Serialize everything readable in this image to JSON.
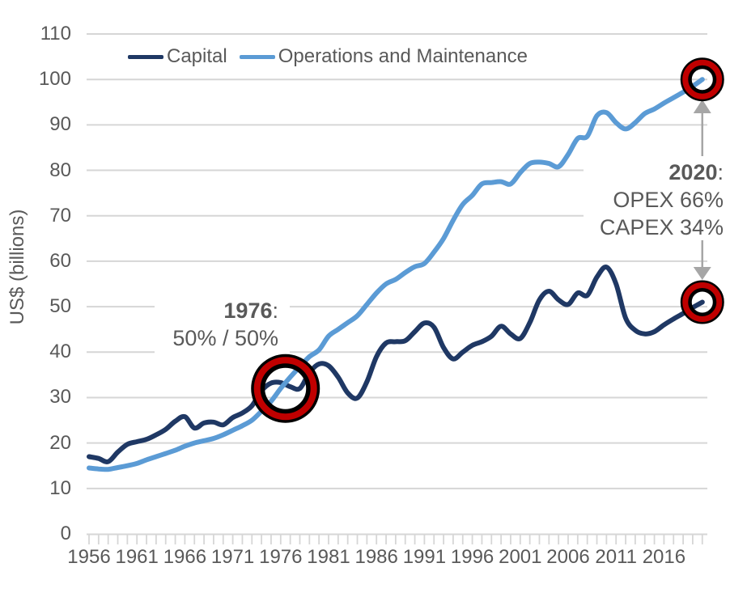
{
  "colors": {
    "background": "#FFFFFF",
    "grid": "#D6D6D6",
    "axis": "#D6D6D6",
    "axis_text": "#595959",
    "capital_line": "#1F3864",
    "om_line": "#5B9BD5",
    "circle_red": "#C00000",
    "circle_outline": "#000000",
    "arrow": "#A6A6A6",
    "annotation_bg": "#FFFFFF",
    "annotation_text": "#595959"
  },
  "annotations": {
    "y1976": {
      "year": "1976",
      "colon": ":",
      "line2": "50% / 50%"
    },
    "y2020": {
      "year": "2020",
      "colon": ":",
      "line2": "OPEX 66%",
      "line3": "CAPEX 34%"
    }
  },
  "chart_data": {
    "type": "line",
    "title": "",
    "xlabel": "",
    "ylabel": "US$ (billions)",
    "ylim": [
      0,
      110
    ],
    "x_range": [
      1956,
      2020
    ],
    "grid": "horizontal",
    "legend_position": "top",
    "y_ticks": [
      0,
      10,
      20,
      30,
      40,
      50,
      60,
      70,
      80,
      90,
      100,
      110
    ],
    "x_tick_labels": [
      1956,
      1961,
      1966,
      1971,
      1976,
      1981,
      1986,
      1991,
      1996,
      2001,
      2006,
      2011,
      2016
    ],
    "x": [
      1956,
      1957,
      1958,
      1959,
      1960,
      1961,
      1962,
      1963,
      1964,
      1965,
      1966,
      1967,
      1968,
      1969,
      1970,
      1971,
      1972,
      1973,
      1974,
      1975,
      1976,
      1977,
      1978,
      1979,
      1980,
      1981,
      1982,
      1983,
      1984,
      1985,
      1986,
      1987,
      1988,
      1989,
      1990,
      1991,
      1992,
      1993,
      1994,
      1995,
      1996,
      1997,
      1998,
      1999,
      2000,
      2001,
      2002,
      2003,
      2004,
      2005,
      2006,
      2007,
      2008,
      2009,
      2010,
      2011,
      2012,
      2013,
      2014,
      2015,
      2016,
      2017,
      2018,
      2019,
      2020
    ],
    "series": [
      {
        "name": "Capital",
        "color": "#1F3864",
        "values": [
          17.0,
          16.6,
          15.9,
          18.0,
          19.7,
          20.3,
          20.8,
          21.8,
          23.0,
          24.8,
          25.8,
          23.3,
          24.4,
          24.6,
          24.0,
          25.6,
          26.6,
          28.2,
          31.5,
          33.2,
          33.3,
          32.4,
          32.0,
          35.5,
          37.4,
          37.0,
          34.5,
          31.0,
          29.9,
          33.5,
          39.0,
          42.0,
          42.3,
          42.5,
          44.5,
          46.4,
          45.5,
          41.0,
          38.5,
          40.0,
          41.5,
          42.3,
          43.5,
          45.7,
          44.0,
          43.0,
          46.5,
          51.5,
          53.4,
          51.5,
          50.5,
          53.0,
          52.5,
          56.5,
          58.7,
          55.0,
          47.5,
          44.8,
          44.0,
          44.5,
          46.0,
          47.3,
          48.5,
          49.8,
          51.0
        ]
      },
      {
        "name": "Operations and Maintenance",
        "color": "#5B9BD5",
        "values": [
          14.5,
          14.3,
          14.2,
          14.6,
          15.0,
          15.5,
          16.3,
          17.0,
          17.7,
          18.4,
          19.3,
          20.0,
          20.5,
          21.0,
          21.8,
          22.8,
          23.8,
          25.0,
          27.0,
          29.2,
          32.0,
          34.5,
          36.8,
          39.0,
          40.5,
          43.5,
          45.0,
          46.5,
          48.0,
          50.5,
          53.0,
          55.0,
          56.0,
          57.5,
          58.8,
          59.5,
          62.0,
          65.0,
          69.0,
          72.5,
          74.5,
          77.0,
          77.3,
          77.5,
          77.0,
          79.5,
          81.5,
          81.8,
          81.5,
          80.8,
          83.5,
          87.0,
          87.5,
          92.0,
          92.7,
          90.5,
          89.1,
          90.5,
          92.5,
          93.5,
          94.8,
          96.0,
          97.2,
          98.5,
          100.0
        ]
      }
    ],
    "highlights": [
      {
        "year": 1976,
        "value": 32,
        "size": "large",
        "note": "crossing point 50% / 50%"
      },
      {
        "year": 2020,
        "value": 100,
        "size": "small",
        "note": "Operations and Maintenance 2020 (OPEX 66%)"
      },
      {
        "year": 2020,
        "value": 51,
        "size": "small",
        "note": "Capital 2020 (CAPEX 34%)"
      }
    ]
  }
}
